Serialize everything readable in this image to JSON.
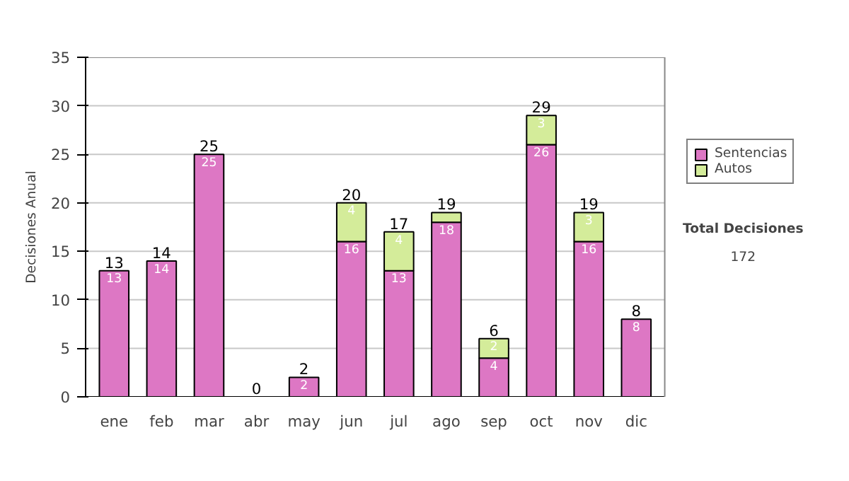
{
  "chart_data": {
    "type": "bar",
    "stacked": true,
    "ylabel": "Decisiones Anual",
    "categories": [
      "ene",
      "feb",
      "mar",
      "abr",
      "may",
      "jun",
      "jul",
      "ago",
      "sep",
      "oct",
      "nov",
      "dic"
    ],
    "series": [
      {
        "name": "Sentencias",
        "color": "#dd77c4",
        "values": [
          13,
          14,
          25,
          0,
          2,
          16,
          13,
          18,
          4,
          26,
          16,
          8
        ],
        "value_labels": [
          "13",
          "14",
          "25",
          null,
          "2",
          "16",
          "13",
          "18",
          "4",
          "26",
          "16",
          "8"
        ]
      },
      {
        "name": "Autos",
        "color": "#d4ec9a",
        "values": [
          0,
          0,
          0,
          0,
          0,
          4,
          4,
          1,
          2,
          3,
          3,
          0
        ],
        "value_labels": [
          null,
          null,
          null,
          null,
          null,
          "4",
          "4",
          null,
          "2",
          "3",
          "3",
          null
        ]
      }
    ],
    "totals": [
      "13",
      "14",
      "25",
      "0",
      "2",
      "20",
      "17",
      "19",
      "6",
      "29",
      "19",
      "8"
    ],
    "ylim": [
      0,
      35
    ],
    "yticks": [
      0,
      5,
      10,
      15,
      20,
      25,
      30,
      35
    ],
    "grid": "y",
    "legend": "right",
    "annotations": [
      "Total Decisiones",
      "172"
    ]
  }
}
